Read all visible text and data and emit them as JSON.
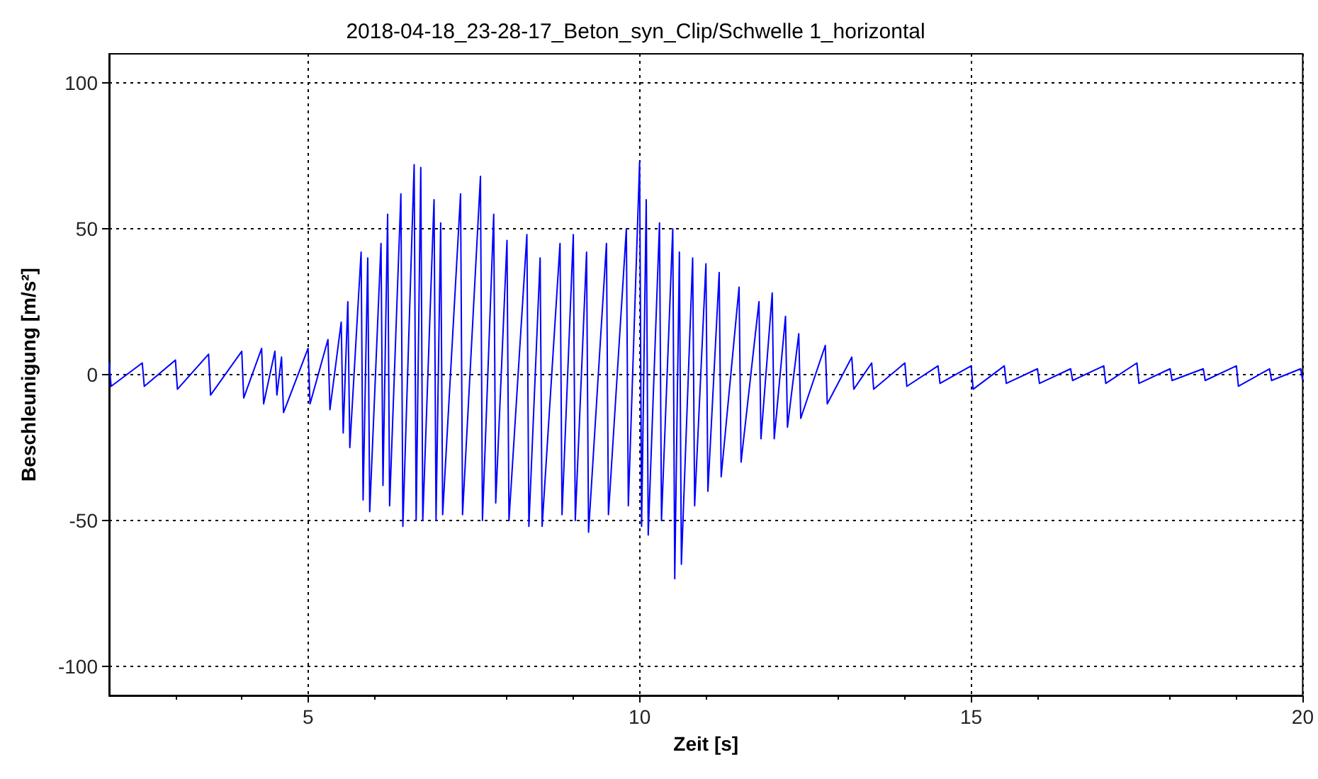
{
  "chart_data": {
    "type": "line",
    "title": "2018-04-18_23-28-17_Beton_syn_Clip/Schwelle 1_horizontal",
    "xlabel": "Zeit [s]",
    "ylabel": "Beschleunigung [m/s²]",
    "xlim": [
      2,
      20
    ],
    "xticks": [
      5,
      10,
      15,
      20
    ],
    "ylim": [
      -110,
      110
    ],
    "yticks": [
      -100,
      -50,
      0,
      50,
      100
    ],
    "grid": true,
    "marker": "none",
    "line_style": "solid",
    "series": [
      {
        "color": "#0000ff",
        "x": [
          2.0,
          2.03,
          2.5,
          2.53,
          3.0,
          3.03,
          3.5,
          3.53,
          4.0,
          4.03,
          4.3,
          4.33,
          4.5,
          4.53,
          4.6,
          4.63,
          5.0,
          5.03,
          5.3,
          5.33,
          5.5,
          5.53,
          5.6,
          5.63,
          5.8,
          5.83,
          5.9,
          5.93,
          6.1,
          6.13,
          6.2,
          6.23,
          6.4,
          6.43,
          6.6,
          6.63,
          6.7,
          6.73,
          6.9,
          6.93,
          7.0,
          7.03,
          7.3,
          7.33,
          7.6,
          7.63,
          7.8,
          7.83,
          8.0,
          8.03,
          8.3,
          8.33,
          8.5,
          8.53,
          8.8,
          8.83,
          9.0,
          9.03,
          9.2,
          9.23,
          9.5,
          9.53,
          9.8,
          9.83,
          10.0,
          10.03,
          10.1,
          10.13,
          10.3,
          10.33,
          10.5,
          10.53,
          10.6,
          10.63,
          10.8,
          10.83,
          11.0,
          11.03,
          11.2,
          11.23,
          11.5,
          11.53,
          11.8,
          11.83,
          12.0,
          12.03,
          12.2,
          12.23,
          12.4,
          12.43,
          12.8,
          12.83,
          13.2,
          13.23,
          13.5,
          13.53,
          14.0,
          14.03,
          14.5,
          14.53,
          15.0,
          15.03,
          15.5,
          15.53,
          16.0,
          16.03,
          16.5,
          16.53,
          17.0,
          17.03,
          17.5,
          17.53,
          18.0,
          18.03,
          18.5,
          18.53,
          19.0,
          19.03,
          19.5,
          19.53,
          19.97,
          20.0
        ],
        "values": [
          4,
          -4,
          4,
          -4,
          5,
          -5,
          7,
          -7,
          8,
          -8,
          9,
          -10,
          8,
          -7,
          6,
          -13,
          9,
          -10,
          12,
          -12,
          18,
          -20,
          25,
          -25,
          42,
          -43,
          40,
          -47,
          45,
          -38,
          55,
          -45,
          62,
          -52,
          72,
          -50,
          71,
          -50,
          60,
          -50,
          52,
          -48,
          62,
          -48,
          68,
          -50,
          55,
          -44,
          46,
          -50,
          48,
          -52,
          40,
          -52,
          45,
          -48,
          48,
          -50,
          42,
          -54,
          45,
          -48,
          50,
          -45,
          73,
          -52,
          60,
          -55,
          52,
          -50,
          50,
          -70,
          42,
          -65,
          40,
          -45,
          38,
          -40,
          35,
          -35,
          30,
          -30,
          25,
          -22,
          28,
          -22,
          20,
          -18,
          14,
          -15,
          10,
          -10,
          6,
          -5,
          4,
          -5,
          4,
          -4,
          3,
          -3,
          3,
          -5,
          3,
          -3,
          2,
          -3,
          2,
          -2,
          3,
          -3,
          4,
          -3,
          2,
          -2,
          2,
          -2,
          3,
          -4,
          2,
          -2,
          2,
          -2
        ]
      }
    ]
  }
}
